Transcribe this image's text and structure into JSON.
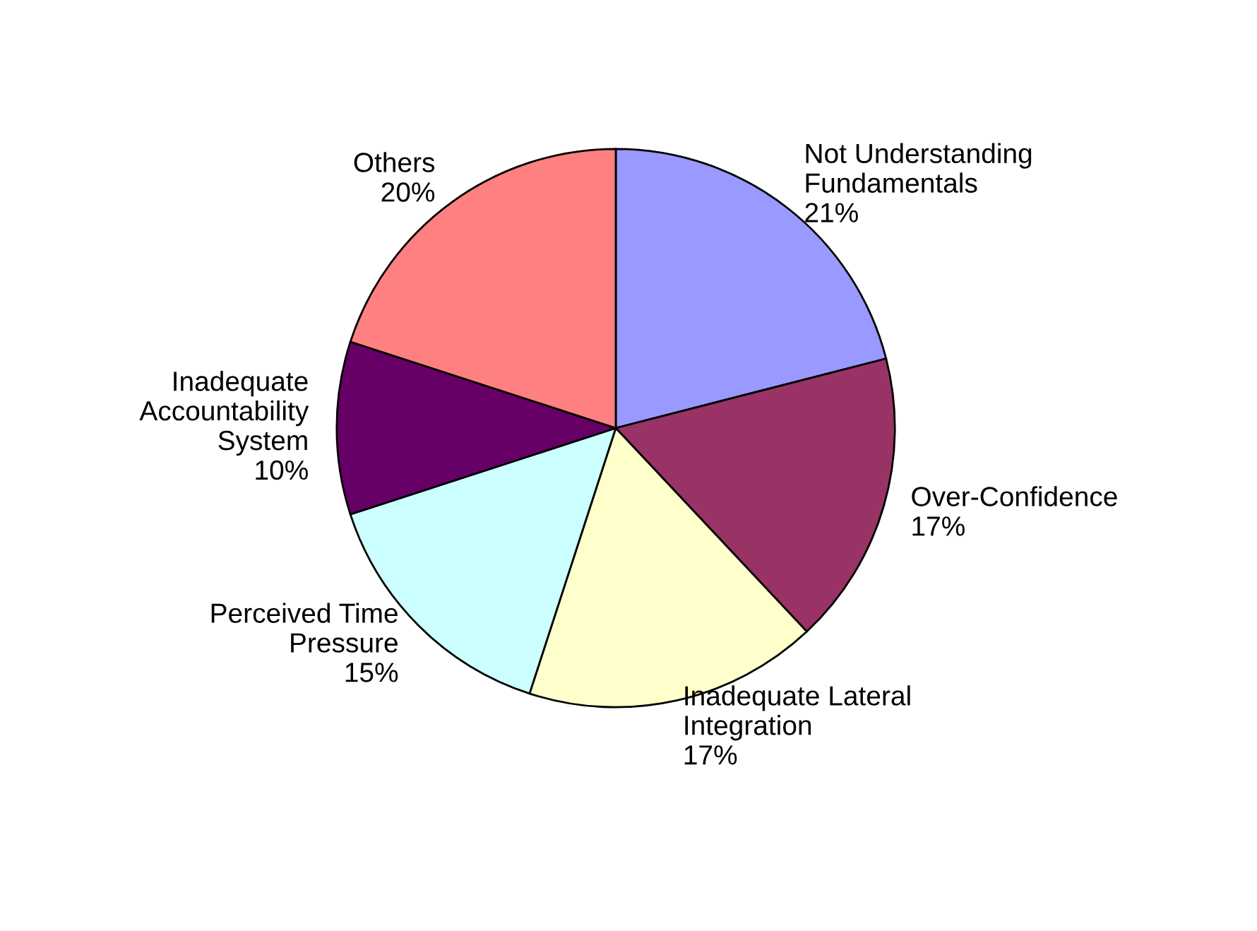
{
  "chart_data": {
    "type": "pie",
    "categories": [
      "Not Understanding\nFundamentals",
      "Over-Confidence",
      "Inadequate Lateral\nIntegration",
      "Perceived Time\nPressure",
      "Inadequate\nAccountability\nSystem",
      "Others"
    ],
    "values": [
      21,
      17,
      17,
      15,
      10,
      20
    ],
    "value_labels": [
      "21%",
      "17%",
      "17%",
      "15%",
      "10%",
      "20%"
    ],
    "colors": [
      "#9999ff",
      "#993366",
      "#ffffcc",
      "#ccffff",
      "#660066",
      "#ff8080"
    ],
    "legend": false
  }
}
